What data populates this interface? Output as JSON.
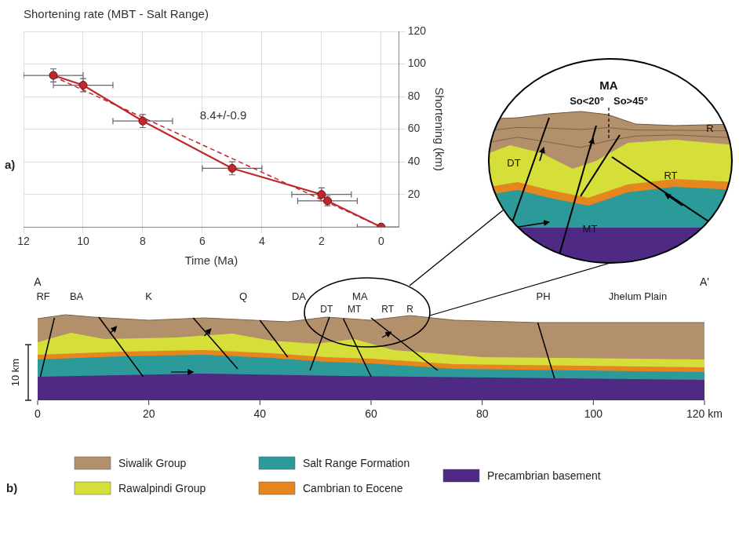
{
  "chart_data": {
    "type": "scatter",
    "panel": "a)",
    "title": "Shortening rate (MBT - Salt Range)",
    "x_label": "Time (Ma)",
    "y_label": "Shortening (km)",
    "xlim": [
      12,
      -0.6
    ],
    "xticks": [
      12,
      10,
      8,
      6,
      4,
      2,
      0
    ],
    "ylim": [
      0,
      120
    ],
    "yticks": [
      20,
      40,
      60,
      80,
      100,
      120
    ],
    "grid": true,
    "series": [
      {
        "color": "#c0282d",
        "marker": "circle",
        "line_style": "solid",
        "x": [
          11,
          10,
          8,
          5,
          2,
          1.8,
          0
        ],
        "values": [
          93,
          87,
          65,
          36,
          20,
          16,
          0
        ],
        "x_error": [
          1,
          1,
          1,
          1,
          1,
          1,
          0.8
        ],
        "y_error": [
          4,
          4,
          4,
          4,
          4,
          3,
          0
        ]
      },
      {
        "color": "#c0282d",
        "line_style": "dashed",
        "x": [
          11,
          0
        ],
        "values": [
          92.4,
          0
        ]
      }
    ],
    "annotations": [
      {
        "text": "8.4+/-0.9",
        "x": 5.3,
        "y": 68
      }
    ]
  },
  "cross_section": {
    "panel": "b)",
    "end_labels": [
      "A",
      "A'"
    ],
    "xlim": [
      0,
      120
    ],
    "xticks": [
      0,
      20,
      40,
      60,
      80,
      100,
      {
        "value": 120,
        "label": "120 km"
      }
    ],
    "scale_bar": {
      "value": 10,
      "label": "10 km"
    },
    "structures": [
      {
        "text": "RF",
        "km": 1
      },
      {
        "text": "BA",
        "km": 7
      },
      {
        "text": "K",
        "km": 20
      },
      {
        "text": "Q",
        "km": 37
      },
      {
        "text": "DA",
        "km": 47
      },
      {
        "text": "MA",
        "km": 58
      },
      {
        "text": "PH",
        "km": 91
      },
      {
        "text": "Jhelum Plain",
        "km": 108
      }
    ],
    "circled": [
      {
        "text": "DT",
        "km": 52
      },
      {
        "text": "MT",
        "km": 57
      },
      {
        "text": "RT",
        "km": 63
      },
      {
        "text": "R",
        "km": 67
      }
    ],
    "inset": {
      "title": "MA",
      "dip_labels": [
        "So<20°",
        "So>45°"
      ],
      "faults": [
        "DT",
        "MT",
        "RT"
      ],
      "labels": [
        "R"
      ]
    },
    "legend_items": [
      {
        "name": "Siwalik Group",
        "color": "#b3906c"
      },
      {
        "name": "Rawalpindi Group",
        "color": "#d6df3a"
      },
      {
        "name": "Salt Range Formation",
        "color": "#2b9a98"
      },
      {
        "name": "Cambrian to Eocene",
        "color": "#e5861f"
      },
      {
        "name": "Precambrian basement",
        "color": "#4e2a84"
      }
    ]
  }
}
